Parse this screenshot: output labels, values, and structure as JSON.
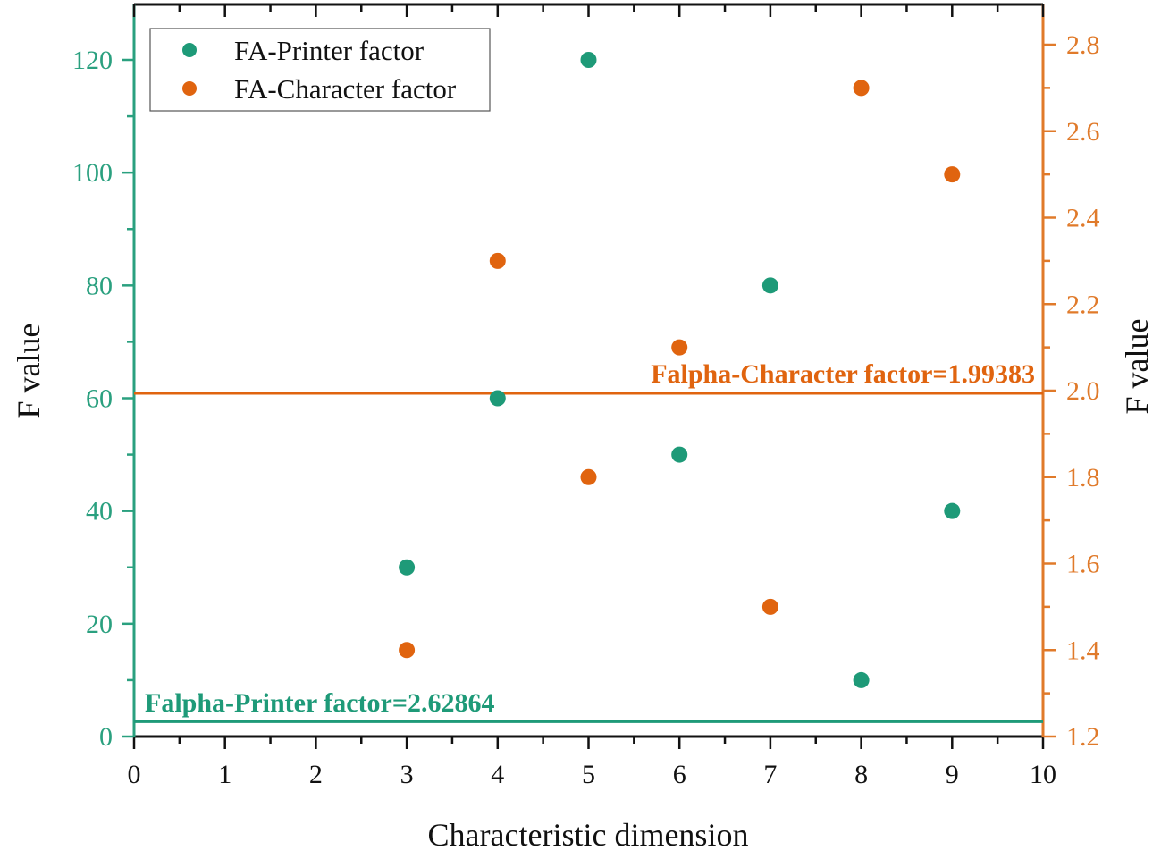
{
  "colors": {
    "printer": "#1e9a78",
    "character": "#e0640f",
    "left_axis": "#2aa07f",
    "right_axis": "#e07a2a",
    "frame": "#111111"
  },
  "legend": {
    "items": [
      {
        "label": "FA-Printer factor",
        "color": "#1e9a78"
      },
      {
        "label": "FA-Character factor",
        "color": "#e0640f"
      }
    ]
  },
  "axes": {
    "xlabel": "Characteristic dimension",
    "ylabel_left": "F value",
    "ylabel_right": "F value",
    "x_ticks": [
      "0",
      "1",
      "2",
      "3",
      "4",
      "5",
      "6",
      "7",
      "8",
      "9",
      "10"
    ],
    "y_left_ticks": [
      "0",
      "20",
      "40",
      "60",
      "80",
      "100",
      "120"
    ],
    "y_right_ticks": [
      "1.2",
      "1.4",
      "1.6",
      "1.8",
      "2.0",
      "2.2",
      "2.4",
      "2.6",
      "2.8"
    ]
  },
  "annotations": {
    "printer_threshold": "Falpha-Printer factor=2.62864",
    "character_threshold": "Falpha-Character factor=1.99383"
  },
  "chart_data": {
    "type": "scatter",
    "title": "",
    "xlabel": "Characteristic dimension",
    "ylabel": "F value",
    "ylabel_right": "F value",
    "xlim": [
      0,
      10
    ],
    "ylim_left": [
      0,
      130
    ],
    "ylim_right": [
      1.2,
      2.9
    ],
    "grid": false,
    "legend_position": "upper left",
    "series": [
      {
        "name": "FA-Printer factor",
        "axis": "left",
        "color": "#1e9a78",
        "x": [
          3,
          4,
          5,
          6,
          7,
          8,
          9
        ],
        "y": [
          30,
          60,
          120,
          50,
          80,
          10,
          40
        ]
      },
      {
        "name": "FA-Character factor",
        "axis": "right",
        "color": "#e0640f",
        "x": [
          3,
          4,
          5,
          6,
          7,
          8,
          9
        ],
        "y": [
          1.4,
          2.3,
          1.8,
          2.1,
          1.5,
          2.7,
          2.5
        ]
      }
    ],
    "reference_lines": [
      {
        "label": "Falpha-Printer factor=2.62864",
        "axis": "left",
        "value": 2.62864,
        "color": "#1e9a78"
      },
      {
        "label": "Falpha-Character factor=1.99383",
        "axis": "right",
        "value": 1.99383,
        "color": "#e0640f"
      }
    ]
  }
}
